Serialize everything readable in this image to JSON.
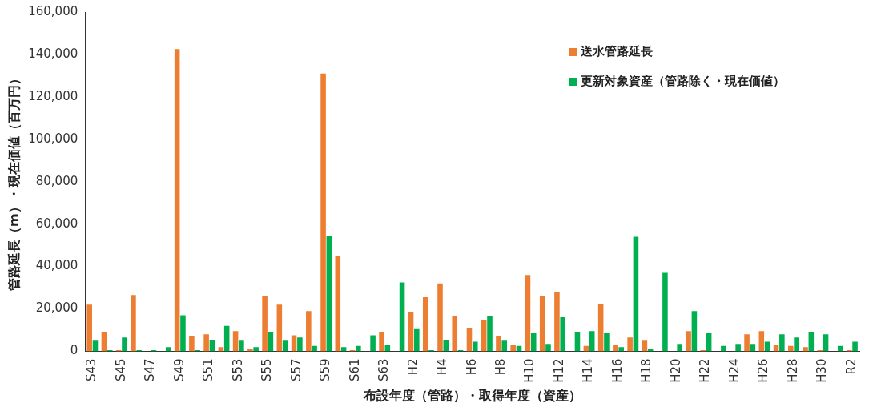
{
  "chart_data": {
    "type": "bar",
    "xlabel": "布設年度（管路）・取得年度（資産）",
    "ylabel": "管路延長（m）・現在価値（百万円）",
    "categories": [
      "S43",
      null,
      "S45",
      null,
      "S47",
      null,
      "S49",
      null,
      "S51",
      null,
      "S53",
      null,
      "S55",
      null,
      "S57",
      null,
      "S59",
      null,
      "S61",
      null,
      "S63",
      null,
      "H2",
      null,
      "H4",
      null,
      "H6",
      null,
      "H8",
      null,
      "H10",
      null,
      "H12",
      null,
      "H14",
      null,
      "H16",
      null,
      "H18",
      null,
      "H20",
      null,
      "H22",
      null,
      "H24",
      null,
      "H26",
      null,
      "H28",
      null,
      "H30",
      null,
      "R2"
    ],
    "series": [
      {
        "name": "送水管路延長",
        "color": "#ed7d31",
        "values": [
          22000,
          9000,
          500,
          26500,
          0,
          0,
          142500,
          7000,
          8000,
          2000,
          9500,
          1000,
          26000,
          22000,
          7500,
          19000,
          131000,
          45000,
          500,
          0,
          9000,
          0,
          18500,
          25500,
          32000,
          16500,
          11000,
          14500,
          7000,
          3000,
          36000,
          26000,
          28000,
          0,
          2500,
          22500,
          3000,
          6500,
          5000,
          0,
          0,
          9500,
          500,
          0,
          0,
          8000,
          9500,
          3000,
          2500,
          2000,
          500,
          0,
          500
        ]
      },
      {
        "name": "更新対象資産（管路除く・現在価値）",
        "color": "#00b050",
        "values": [
          5000,
          500,
          6500,
          500,
          500,
          2000,
          17000,
          500,
          5500,
          12000,
          5000,
          2000,
          9000,
          5000,
          6500,
          2500,
          54500,
          2000,
          2500,
          7500,
          3000,
          32500,
          10500,
          500,
          5500,
          500,
          4500,
          16500,
          5000,
          2500,
          8500,
          3500,
          16000,
          9000,
          9500,
          8500,
          2000,
          54000,
          1000,
          37000,
          3500,
          19000,
          8500,
          2500,
          3500,
          3500,
          4500,
          8000,
          6500,
          9000,
          8000,
          2500,
          4500
        ]
      }
    ],
    "ylim": [
      0,
      160000
    ],
    "yticks": [
      0,
      {
        "value": 20000,
        "label": "20,000"
      },
      {
        "value": 40000,
        "label": "40,000"
      },
      {
        "value": 60000,
        "label": "60,000"
      },
      {
        "value": 80000,
        "label": "80,000"
      },
      {
        "value": 100000,
        "label": "100,000"
      },
      {
        "value": 120000,
        "label": "120,000"
      },
      {
        "value": 140000,
        "label": "140,000"
      },
      {
        "value": 160000,
        "label": "160,000"
      }
    ],
    "grid": false,
    "legend": "top right"
  }
}
